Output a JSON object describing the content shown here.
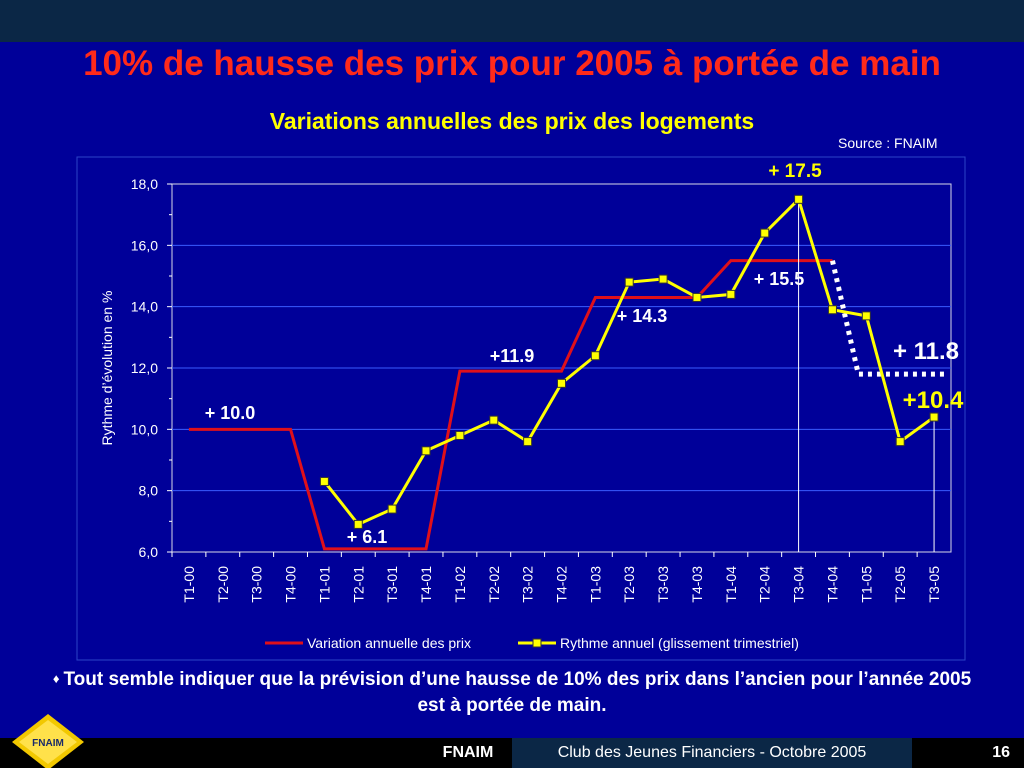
{
  "slide": {
    "title": "10% de hausse des prix pour 2005 à portée de main",
    "chart_title": "Variations annuelles des prix des logements",
    "source": "Source : FNAIM",
    "bullet": "Tout semble indiquer que la prévision d’une hausse de 10% des prix dans l’ancien pour l’année 2005 est à portée de main.",
    "footer_brand": "FNAIM",
    "footer_text": "Club des Jeunes Financiers - Octobre 2005",
    "page_number": "16",
    "logo_text": "FNAIM"
  },
  "colors": {
    "background": "#000099",
    "title": "#ff2a1a",
    "chart_title": "#ffff00",
    "annual_series": "#e0101a",
    "quarterly_series": "#ffff00",
    "marker_fill": "#ffff00",
    "projection": "#ffffff",
    "grid": "#3a5cff"
  },
  "chart_data": {
    "type": "line",
    "title": "Variations annuelles des prix des logements",
    "ylabel": "Rythme d’évolution en %",
    "xlabel": "",
    "ylim": [
      6,
      18
    ],
    "yticks": [
      "6,0",
      "8,0",
      "10,0",
      "12,0",
      "14,0",
      "16,0",
      "18,0"
    ],
    "ytick_values": [
      6,
      8,
      10,
      12,
      14,
      16,
      18
    ],
    "grid": true,
    "legend_position": "bottom",
    "categories": [
      "T1-00",
      "T2-00",
      "T3-00",
      "T4-00",
      "T1-01",
      "T2-01",
      "T3-01",
      "T4-01",
      "T1-02",
      "T2-02",
      "T3-02",
      "T4-02",
      "T1-03",
      "T2-03",
      "T3-03",
      "T4-03",
      "T1-04",
      "T2-04",
      "T3-04",
      "T4-04",
      "T1-05",
      "T2-05",
      "T3-05"
    ],
    "series": [
      {
        "name": "Variation annuelle des prix",
        "style": "step",
        "values": [
          10.0,
          10.0,
          10.0,
          10.0,
          6.1,
          6.1,
          6.1,
          6.1,
          11.9,
          11.9,
          11.9,
          11.9,
          14.3,
          14.3,
          14.3,
          14.3,
          15.5,
          15.5,
          15.5,
          15.5,
          null,
          null,
          null
        ]
      },
      {
        "name": "Rythme annuel (glissement trimestriel)",
        "style": "line-markers",
        "values": [
          null,
          null,
          null,
          null,
          8.3,
          6.9,
          7.4,
          9.3,
          9.8,
          10.3,
          9.6,
          11.5,
          12.4,
          14.8,
          14.9,
          14.3,
          14.4,
          16.4,
          17.5,
          13.9,
          13.7,
          9.6,
          10.4
        ]
      }
    ],
    "annotations": [
      {
        "text": "+ 10.0"
      },
      {
        "text": "+ 6.1"
      },
      {
        "text": "+11.9"
      },
      {
        "text": "+ 14.3"
      },
      {
        "text": "+ 15.5"
      },
      {
        "text": "+ 17.5"
      },
      {
        "text": "+ 11.8"
      },
      {
        "text": "+10.4"
      }
    ],
    "projection": {
      "from_value": 15.5,
      "to_value": 11.8
    }
  }
}
